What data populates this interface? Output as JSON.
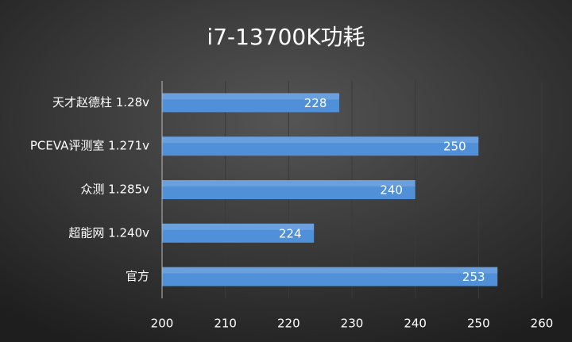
{
  "chart_data": {
    "type": "bar",
    "orientation": "horizontal",
    "title": "i7-13700K功耗",
    "categories": [
      "天才赵德柱 1.28v",
      "PCEVA评测室 1.271v",
      "众测 1.285v",
      "超能网 1.240v",
      "官方"
    ],
    "values": [
      228,
      250,
      240,
      224,
      253
    ],
    "color": "#4f90d8",
    "xlim": [
      200,
      260
    ],
    "xticks": [
      200,
      210,
      220,
      230,
      240,
      250,
      260
    ],
    "grid": true
  }
}
